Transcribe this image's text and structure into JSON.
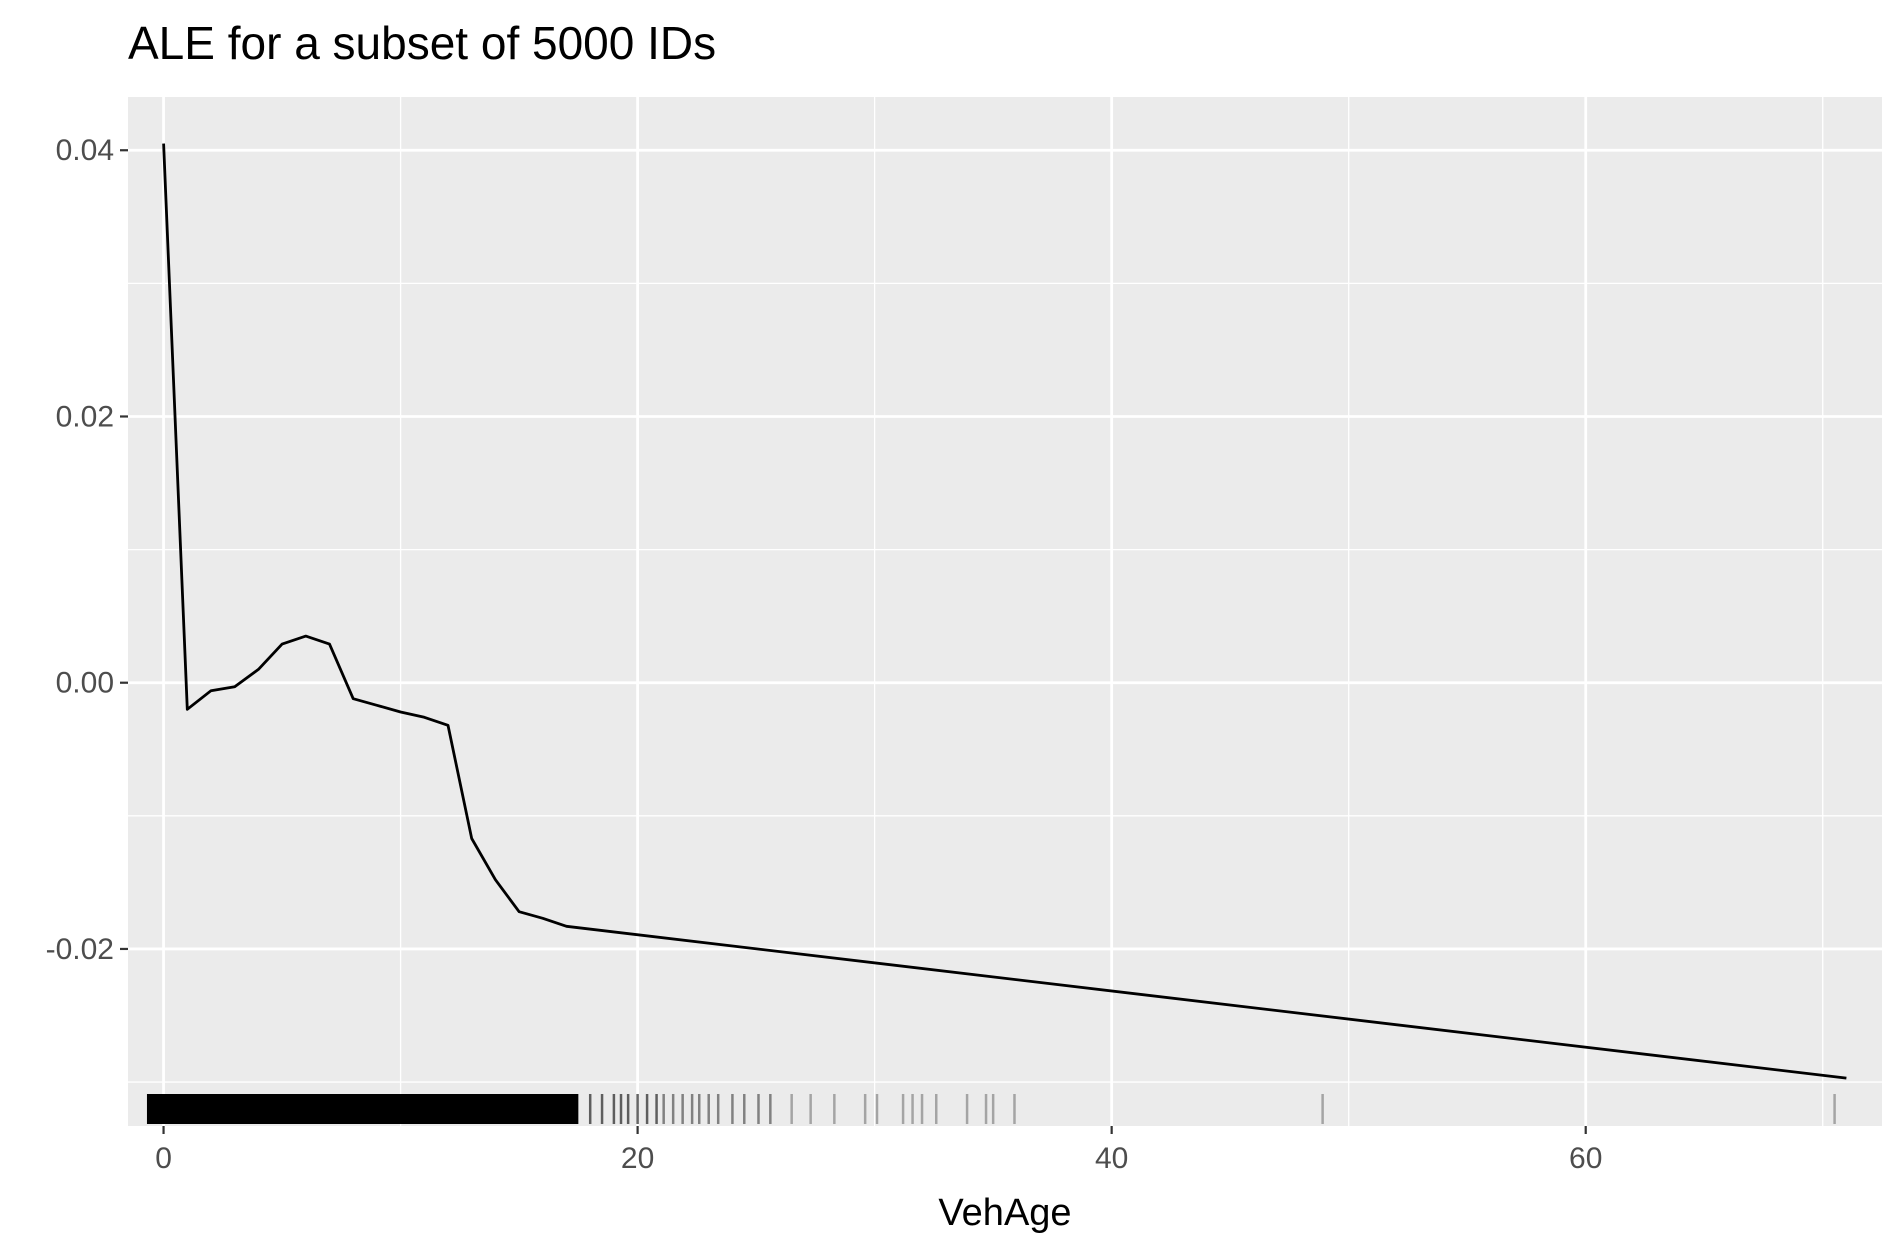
{
  "chart_data": {
    "type": "line",
    "title": "ALE for a subset of 5000 IDs",
    "xlabel": "VehAge",
    "ylabel": "",
    "xlim": [
      -1.5,
      72.5
    ],
    "ylim": [
      -0.0333,
      0.044
    ],
    "x_ticks": [
      0,
      20,
      40,
      60
    ],
    "x_tick_labels": [
      "0",
      "20",
      "40",
      "60"
    ],
    "y_ticks": [
      -0.02,
      0.0,
      0.02,
      0.04
    ],
    "y_tick_labels": [
      "-0.02",
      "0.00",
      "0.02",
      "0.04"
    ],
    "grid": true,
    "legend": "none",
    "colors": {
      "panel": "#ebebeb",
      "grid": "#ffffff",
      "line": "#000000",
      "rug": "#000000"
    },
    "series": [
      {
        "x": [
          0,
          1,
          2,
          3,
          4,
          5,
          6,
          7,
          8,
          9,
          10,
          11,
          12,
          13,
          14,
          15,
          16,
          17,
          71
        ],
        "y": [
          0.0405,
          -0.002,
          -0.0006,
          -0.0003,
          0.001,
          0.0029,
          0.0035,
          0.0029,
          -0.0012,
          -0.0017,
          -0.0022,
          -0.0026,
          -0.0032,
          -0.0117,
          -0.0148,
          -0.0172,
          -0.0177,
          -0.0183,
          -0.0297
        ]
      }
    ],
    "rug": {
      "dense_range": [
        -0.7,
        17.5
      ],
      "x": [
        18,
        18.5,
        19,
        19.3,
        19.6,
        20,
        20.4,
        20.8,
        21.1,
        21.5,
        21.9,
        22.3,
        22.6,
        23,
        23.4,
        24,
        24.5,
        25.1,
        25.6,
        26.5,
        27.3,
        28.3,
        29.6,
        30.1,
        31.2,
        31.6,
        32.0,
        32.6,
        33.9,
        34.7,
        35.0,
        35.9,
        48.9,
        70.5
      ]
    }
  }
}
